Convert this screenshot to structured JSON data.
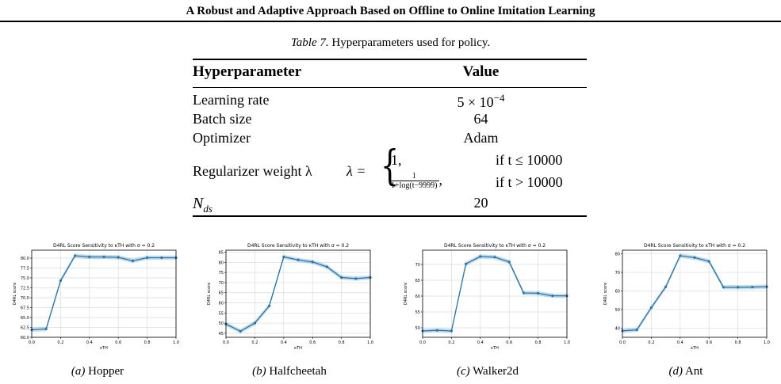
{
  "page": {
    "header": "A Robust and Adaptive Approach Based on Offline to Online Imitation Learning",
    "table_caption_label": "Table 7.",
    "table_caption_text": "Hyperparameters used for policy."
  },
  "table": {
    "col_headers": [
      "Hyperparameter",
      "Value"
    ],
    "rows": [
      {
        "name": "Learning rate",
        "value_base": "5 × 10",
        "value_exp": "−4"
      },
      {
        "name": "Batch size",
        "value": "64"
      },
      {
        "name": "Optimizer",
        "value": "Adam"
      },
      {
        "name": "Regularizer weight λ",
        "lhs": "λ =",
        "case1_value": "1,",
        "case1_cond": "if t ≤ 10000",
        "case2_num": "1",
        "case2_den": "1+log(t−9999)",
        "case2_comma": ",",
        "case2_cond": "if t > 10000"
      },
      {
        "name_base": "N",
        "name_sub": "ds",
        "value": "20"
      }
    ]
  },
  "subcaptions": [
    {
      "label": "(a)",
      "name": "Hopper"
    },
    {
      "label": "(b)",
      "name": "Halfcheetah"
    },
    {
      "label": "(c)",
      "name": "Walker2d"
    },
    {
      "label": "(d)",
      "name": "Ant"
    }
  ],
  "chart_data": [
    {
      "type": "line",
      "title": "D4RL Score Sensitivity to κTH with σ = 0.2",
      "xlabel": "κTH",
      "ylabel": "D4RL score",
      "x": [
        0.0,
        0.1,
        0.2,
        0.3,
        0.4,
        0.5,
        0.6,
        0.7,
        0.8,
        0.9,
        1.0
      ],
      "series": [
        {
          "values": [
            61.9,
            62.1,
            74.3,
            80.6,
            80.3,
            80.3,
            80.2,
            79.3,
            80.1,
            80.1,
            80.1
          ]
        }
      ],
      "xlim": [
        0.0,
        1.0
      ],
      "ylim": [
        60.0,
        82.0
      ],
      "xticks": [
        "0.0",
        "0.2",
        "0.4",
        "0.6",
        "0.8",
        "1.0"
      ],
      "yticks": [
        "60.0",
        "62.5",
        "65.0",
        "67.5",
        "70.0",
        "72.5",
        "75.0",
        "77.5",
        "80.0"
      ],
      "ytick_values": [
        60.0,
        62.5,
        65.0,
        67.5,
        70.0,
        72.5,
        75.0,
        77.5,
        80.0
      ],
      "grid": true,
      "color": "#1f77b4"
    },
    {
      "type": "line",
      "title": "D4RL Score Sensitivity to κTH with σ = 0.2",
      "xlabel": "κTH",
      "ylabel": "D4RL score",
      "x": [
        0.0,
        0.1,
        0.2,
        0.3,
        0.4,
        0.5,
        0.6,
        0.7,
        0.8,
        0.9,
        1.0
      ],
      "series": [
        {
          "values": [
            49.5,
            46.0,
            50.0,
            58.5,
            82.7,
            81.2,
            80.2,
            77.8,
            72.5,
            72.0,
            72.5
          ]
        }
      ],
      "xlim": [
        0.0,
        1.0
      ],
      "ylim": [
        43.0,
        86.0
      ],
      "xticks": [
        "0.0",
        "0.2",
        "0.4",
        "0.6",
        "0.8",
        "1.0"
      ],
      "yticks": [
        "45",
        "50",
        "55",
        "60",
        "65",
        "70",
        "75",
        "80",
        "85"
      ],
      "ytick_values": [
        45,
        50,
        55,
        60,
        65,
        70,
        75,
        80,
        85
      ],
      "grid": true,
      "color": "#1f77b4"
    },
    {
      "type": "line",
      "title": "D4RL Score Sensitivity to κTH with σ = 0.2",
      "xlabel": "κTH",
      "ylabel": "D4RL score",
      "x": [
        0.0,
        0.1,
        0.2,
        0.3,
        0.4,
        0.5,
        0.6,
        0.7,
        0.8,
        0.9,
        1.0
      ],
      "series": [
        {
          "values": [
            49.0,
            49.2,
            49.0,
            70.2,
            72.5,
            72.3,
            70.8,
            61.0,
            60.9,
            60.1,
            60.1
          ]
        }
      ],
      "xlim": [
        0.0,
        1.0
      ],
      "ylim": [
        47.0,
        74.5
      ],
      "xticks": [
        "0.0",
        "0.2",
        "0.4",
        "0.6",
        "0.8",
        "1.0"
      ],
      "yticks": [
        "50",
        "55",
        "60",
        "65",
        "70"
      ],
      "ytick_values": [
        50,
        55,
        60,
        65,
        70
      ],
      "grid": true,
      "color": "#1f77b4"
    },
    {
      "type": "line",
      "title": "D4RL Score Sensitivity to κTH with σ = 0.2",
      "xlabel": "κTH",
      "ylabel": "D4RL score",
      "x": [
        0.0,
        0.1,
        0.2,
        0.3,
        0.4,
        0.5,
        0.6,
        0.7,
        0.8,
        0.9,
        1.0
      ],
      "series": [
        {
          "values": [
            38.5,
            39.0,
            51.0,
            62.2,
            79.0,
            78.0,
            76.0,
            62.0,
            62.0,
            62.1,
            62.3
          ]
        }
      ],
      "xlim": [
        0.0,
        1.0
      ],
      "ylim": [
        35.0,
        82.0
      ],
      "xticks": [
        "0.0",
        "0.2",
        "0.4",
        "0.6",
        "0.8",
        "1.0"
      ],
      "yticks": [
        "40",
        "50",
        "60",
        "70",
        "80"
      ],
      "ytick_values": [
        40,
        50,
        60,
        70,
        80
      ],
      "grid": true,
      "color": "#1f77b4"
    }
  ]
}
